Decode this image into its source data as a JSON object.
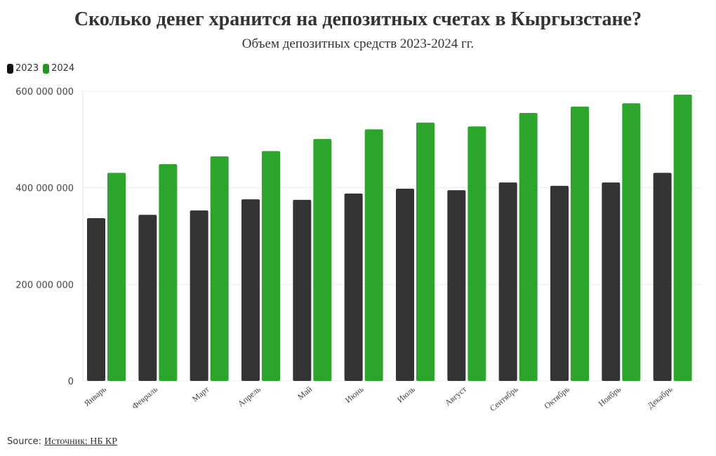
{
  "chart_data": {
    "type": "bar",
    "title": "Сколько денег хранится на депозитных счетах в Кыргызстане?",
    "subtitle": "Объем депозитных средств 2023-2024 гг.",
    "categories": [
      "Январь",
      "Февраль",
      "Март",
      "Апрель",
      "Май",
      "Июнь",
      "Июль",
      "Август",
      "Сентябрь",
      "Октябрь",
      "Ноябрь",
      "Декабрь"
    ],
    "series": [
      {
        "name": "2023",
        "color": "#333333",
        "values": [
          337000000,
          344000000,
          353000000,
          376000000,
          375000000,
          388000000,
          398000000,
          395000000,
          411000000,
          404000000,
          411000000,
          431000000
        ]
      },
      {
        "name": "2024",
        "color": "#2ca52c",
        "values": [
          431000000,
          449000000,
          465000000,
          476000000,
          501000000,
          521000000,
          535000000,
          527000000,
          555000000,
          568000000,
          575000000,
          593000000
        ]
      }
    ],
    "ylim": [
      0,
      600000000
    ],
    "yticks": [
      0,
      200000000,
      400000000,
      600000000
    ],
    "ytick_labels": [
      "0",
      "200 000 000",
      "400 000 000",
      "600 000 000"
    ],
    "xlabel": "",
    "ylabel": "",
    "grid": true,
    "legend": "top-left"
  },
  "source": {
    "label": "Source:",
    "text": "Источник: НБ КР"
  }
}
